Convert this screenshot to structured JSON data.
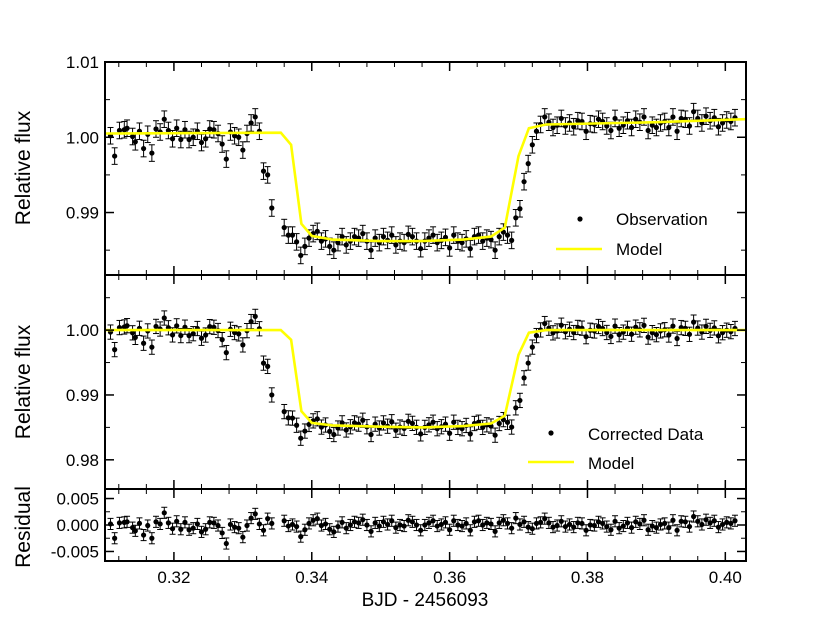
{
  "chart_data": {
    "type": "scatter",
    "xlabel": "BJD - 2456093",
    "xlim": [
      0.31,
      0.403
    ],
    "x_ticks": [
      "0.32",
      "0.34",
      "0.36",
      "0.38",
      "0.40"
    ],
    "x_tick_values": [
      0.32,
      0.34,
      0.36,
      0.38,
      0.4
    ],
    "colors": {
      "points": "#000000",
      "model": "#ffff00",
      "axes": "#000000"
    },
    "panels": [
      {
        "id": "raw",
        "ylabel": "Relative flux",
        "ylim": [
          0.9817,
          1.01
        ],
        "y_ticks": [
          "1.01",
          "1.00",
          "0.99"
        ],
        "y_tick_values": [
          1.01,
          1.0,
          0.99
        ],
        "legend": {
          "position": "lower-right",
          "entries": [
            "Observation",
            "Model"
          ]
        },
        "model": {
          "x": [
            0.31,
            0.3355,
            0.337,
            0.3385,
            0.34,
            0.343,
            0.35,
            0.356,
            0.362,
            0.366,
            0.368,
            0.37,
            0.3715,
            0.374,
            0.39,
            0.403
          ],
          "y": [
            1.0005,
            1.0006,
            0.999,
            0.9885,
            0.9869,
            0.9864,
            0.9862,
            0.9862,
            0.9864,
            0.9868,
            0.988,
            0.9975,
            1.0012,
            1.0017,
            1.002,
            1.0024
          ]
        }
      },
      {
        "id": "corrected",
        "ylabel": "Relative flux",
        "ylim": [
          0.9755,
          1.0085
        ],
        "y_ticks": [
          "1.00",
          "0.99",
          "0.98"
        ],
        "y_tick_values": [
          1.0,
          0.99,
          0.98
        ],
        "legend": {
          "position": "lower-right",
          "entries": [
            "Corrected Data",
            "Model"
          ]
        },
        "model": {
          "x": [
            0.31,
            0.3355,
            0.337,
            0.3385,
            0.34,
            0.343,
            0.35,
            0.356,
            0.362,
            0.366,
            0.368,
            0.37,
            0.3715,
            0.374,
            0.39,
            0.403
          ],
          "y": [
            1.0,
            1.0,
            0.9985,
            0.9875,
            0.9857,
            0.9853,
            0.9851,
            0.985,
            0.9852,
            0.9856,
            0.9868,
            0.9962,
            0.9996,
            1.0,
            1.0,
            1.0
          ]
        }
      },
      {
        "id": "residual",
        "ylabel": "Residual",
        "ylim": [
          -0.0068,
          0.0068
        ],
        "y_ticks": [
          "0.005",
          "0.000",
          "-0.005"
        ],
        "y_tick_values": [
          0.005,
          0.0,
          -0.005
        ]
      }
    ],
    "observations": {
      "x": [
        0.3108,
        0.3114,
        0.3121,
        0.3128,
        0.3132,
        0.314,
        0.3144,
        0.315,
        0.3156,
        0.3162,
        0.3168,
        0.3174,
        0.318,
        0.3186,
        0.3192,
        0.3198,
        0.3204,
        0.321,
        0.3216,
        0.3222,
        0.3228,
        0.3234,
        0.324,
        0.3246,
        0.3252,
        0.3258,
        0.3264,
        0.327,
        0.3276,
        0.3282,
        0.3288,
        0.3294,
        0.33,
        0.3306,
        0.3312,
        0.3318,
        0.3324,
        0.333,
        0.3336,
        0.3342,
        0.336,
        0.3366,
        0.3372,
        0.3378,
        0.3384,
        0.339,
        0.3396,
        0.3402,
        0.3408,
        0.3414,
        0.342,
        0.3426,
        0.3432,
        0.3438,
        0.3444,
        0.345,
        0.3456,
        0.3462,
        0.3468,
        0.3474,
        0.348,
        0.3486,
        0.3492,
        0.3498,
        0.3504,
        0.351,
        0.3516,
        0.3522,
        0.3528,
        0.3534,
        0.354,
        0.3546,
        0.3552,
        0.3558,
        0.3564,
        0.357,
        0.3576,
        0.3582,
        0.3588,
        0.3594,
        0.36,
        0.3606,
        0.3612,
        0.3618,
        0.3624,
        0.363,
        0.3636,
        0.3642,
        0.3648,
        0.3654,
        0.366,
        0.3666,
        0.3672,
        0.3678,
        0.3684,
        0.369,
        0.3696,
        0.3702,
        0.3708,
        0.3714,
        0.372,
        0.3726,
        0.3732,
        0.3738,
        0.3744,
        0.375,
        0.3756,
        0.3762,
        0.3768,
        0.3774,
        0.378,
        0.3786,
        0.3792,
        0.3798,
        0.3804,
        0.381,
        0.3816,
        0.3822,
        0.3828,
        0.3834,
        0.384,
        0.3846,
        0.3852,
        0.3858,
        0.3864,
        0.387,
        0.3876,
        0.3882,
        0.3888,
        0.3894,
        0.39,
        0.3906,
        0.3912,
        0.3918,
        0.3924,
        0.393,
        0.3936,
        0.3942,
        0.3948,
        0.3954,
        0.396,
        0.3966,
        0.3972,
        0.3978,
        0.3984,
        0.399,
        0.3996,
        0.4002,
        0.4008,
        0.4014,
        0.402,
        0.4026
      ],
      "raw_flux": [
        1.0002,
        0.9975,
        1.0009,
        1.001,
        1.0012,
        1.0001,
        0.9994,
        1.0008,
        0.9985,
        1.0004,
        0.9979,
        1.0011,
        1.0007,
        1.0024,
        1.0009,
        0.9998,
        1.0012,
        0.9997,
        1.001,
        0.9997,
        1.0,
        1.0008,
        0.9993,
        0.9998,
        1.0011,
        1.001,
        1.0005,
        0.9991,
        0.9971,
        1.0007,
        1.0002,
        1.0,
        0.9983,
        1.0005,
        1.0019,
        1.0027,
        1.0008,
        0.9955,
        0.995,
        0.9906,
        0.988,
        0.987,
        0.987,
        0.9861,
        0.9843,
        0.9855,
        0.9866,
        0.9872,
        0.9875,
        0.9862,
        0.9865,
        0.9855,
        0.985,
        0.986,
        0.9868,
        0.9857,
        0.9862,
        0.9868,
        0.9866,
        0.9872,
        0.9862,
        0.985,
        0.9866,
        0.986,
        0.9868,
        0.9863,
        0.987,
        0.9857,
        0.9862,
        0.986,
        0.9871,
        0.9868,
        0.9862,
        0.9852,
        0.9862,
        0.9866,
        0.987,
        0.986,
        0.9863,
        0.9867,
        0.9853,
        0.987,
        0.9862,
        0.986,
        0.9865,
        0.9852,
        0.9868,
        0.987,
        0.9862,
        0.9866,
        0.9864,
        0.985,
        0.9868,
        0.9874,
        0.987,
        0.9863,
        0.9893,
        0.9905,
        0.9941,
        0.9965,
        0.999,
        1.0008,
        1.0017,
        1.0027,
        1.002,
        1.0013,
        1.0016,
        1.0025,
        1.0015,
        1.0019,
        1.0014,
        1.0022,
        1.0021,
        1.0008,
        1.0018,
        1.0017,
        1.0024,
        1.0021,
        1.0015,
        1.0009,
        1.0025,
        1.0012,
        1.0016,
        1.0022,
        1.0013,
        1.0024,
        1.002,
        1.0027,
        1.0009,
        1.0016,
        1.0013,
        1.0019,
        1.0021,
        1.0013,
        1.0027,
        1.0008,
        1.0025,
        1.0024,
        1.0015,
        1.0034,
        1.0025,
        1.0019,
        1.0028,
        1.0022,
        1.0026,
        1.0014,
        1.0019,
        1.0023,
        1.0021,
        1.0026
      ],
      "residual": [
        0.0002,
        -0.0025,
        0.0004,
        0.0005,
        0.0006,
        -0.0005,
        -0.0011,
        0.0003,
        -0.0019,
        -0.0001,
        -0.0025,
        0.0006,
        0.0002,
        0.0023,
        0.0004,
        -0.0007,
        0.0007,
        -0.0008,
        0.0005,
        -0.0009,
        -0.0006,
        0.0002,
        -0.0013,
        -0.0008,
        0.0005,
        0.0004,
        -0.0001,
        -0.0015,
        -0.0035,
        0.0001,
        -0.0004,
        -0.0006,
        -0.0023,
        -0.0001,
        0.0013,
        0.0021,
        0.0002,
        -0.001,
        0.0012,
        0.0003,
        0.0008,
        -0.0002,
        0.0001,
        -0.0003,
        -0.0022,
        -0.0009,
        0.0003,
        0.0009,
        0.0012,
        -0.0001,
        0.0002,
        -0.0008,
        -0.0013,
        -0.0003,
        0.0005,
        -0.0006,
        0.0,
        0.0006,
        0.0004,
        0.001,
        0.0,
        -0.0012,
        0.0004,
        -0.0002,
        0.0006,
        0.0001,
        0.0008,
        -0.0005,
        0.0,
        -0.0002,
        0.0009,
        0.0006,
        0.0,
        -0.001,
        0.0,
        0.0004,
        0.0008,
        -0.0002,
        0.0001,
        0.0005,
        -0.0009,
        0.0008,
        0.0,
        -0.0002,
        0.0003,
        -0.001,
        0.0006,
        0.0008,
        0.0,
        0.0004,
        0.0002,
        -0.0012,
        0.0004,
        0.0009,
        0.0003,
        -0.0006,
        0.0013,
        0.0001,
        0.0006,
        -0.0004,
        -0.0007,
        0.0003,
        0.0005,
        0.0012,
        0.0004,
        -0.0004,
        -0.0001,
        0.0007,
        -0.0003,
        0.0001,
        -0.0004,
        0.0004,
        0.0003,
        -0.001,
        0.0,
        -0.0001,
        0.0006,
        0.0003,
        -0.0003,
        -0.0009,
        0.0007,
        -0.0006,
        -0.0002,
        0.0004,
        -0.0005,
        0.0006,
        0.0002,
        0.0009,
        -0.0009,
        -0.0002,
        -0.0005,
        0.0001,
        0.0003,
        -0.0005,
        0.0009,
        -0.001,
        0.0007,
        0.0006,
        -0.0003,
        0.0016,
        0.0007,
        0.0001,
        0.001,
        0.0004,
        0.0008,
        -0.0004,
        0.0001,
        0.0005,
        0.0003,
        0.0008
      ],
      "error": 0.0011
    }
  }
}
